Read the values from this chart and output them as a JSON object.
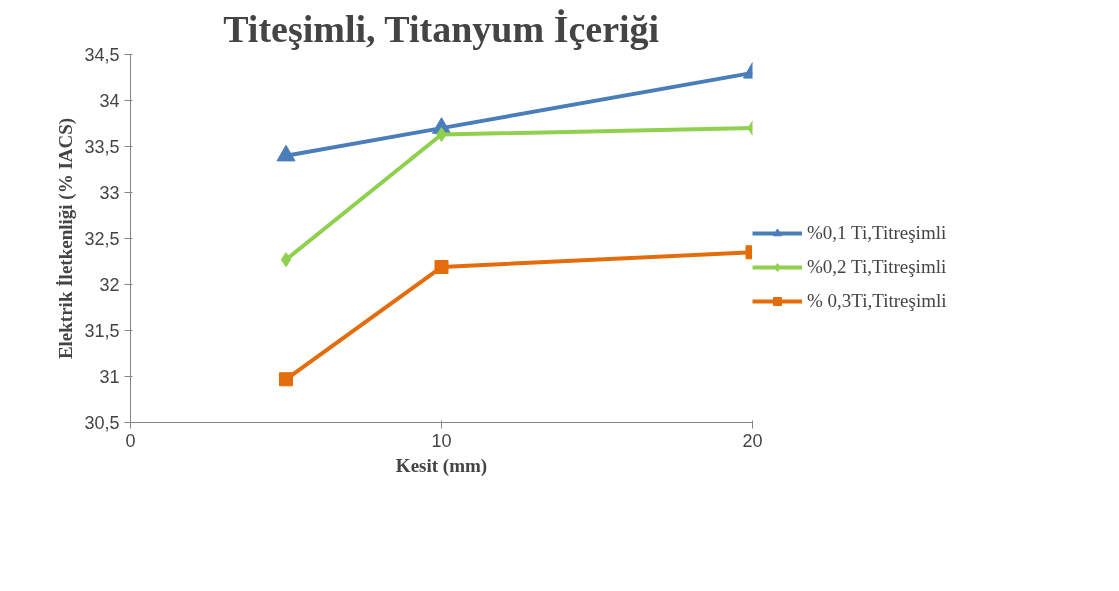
{
  "chart_data": {
    "type": "line",
    "title": "Titeşimli, Titanyum İçeriği",
    "xlabel": "Kesit (mm)",
    "ylabel": "Elektrik İletkenliği (% IACS)",
    "xlim": [
      0,
      20
    ],
    "xticks": [
      0,
      10,
      20
    ],
    "ylim": [
      30.5,
      34.5
    ],
    "yticks": [
      {
        "value": 30.5,
        "label": "30,5"
      },
      {
        "value": 31,
        "label": "31"
      },
      {
        "value": 31.5,
        "label": "31,5"
      },
      {
        "value": 32,
        "label": "32"
      },
      {
        "value": 32.5,
        "label": "32,5"
      },
      {
        "value": 33,
        "label": "33"
      },
      {
        "value": 33.5,
        "label": "33,5"
      },
      {
        "value": 34,
        "label": "34"
      },
      {
        "value": 34.5,
        "label": "34,5"
      }
    ],
    "x": [
      5,
      10,
      20
    ],
    "grid": false,
    "legend": "right",
    "series": [
      {
        "name": "%0,1 Ti,Titreşimli",
        "color": "#4a7ebb",
        "marker": "triangle",
        "values": [
          33.4,
          33.7,
          34.3
        ]
      },
      {
        "name": "%0,2 Ti,Titreşimli",
        "color": "#8fd14f",
        "marker": "diamond",
        "values": [
          32.27,
          33.63,
          33.7
        ]
      },
      {
        "name": "% 0,3Ti,Titreşimli",
        "color": "#e46c0a",
        "marker": "square",
        "values": [
          30.97,
          32.19,
          32.35
        ]
      }
    ]
  }
}
